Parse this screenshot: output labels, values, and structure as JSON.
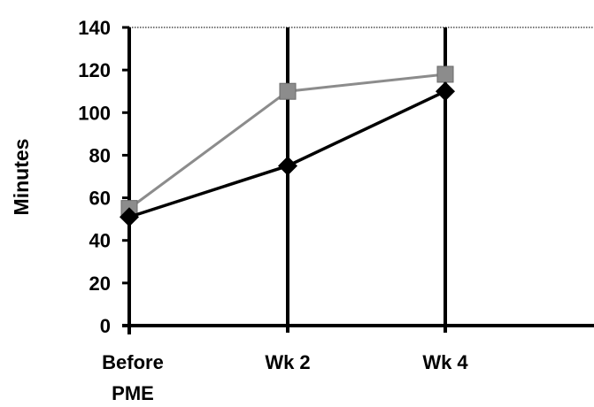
{
  "chart_data": {
    "type": "line",
    "title": "",
    "xlabel": "",
    "ylabel": "Minutes",
    "categories": [
      [
        "Before",
        "PME"
      ],
      [
        "Wk 2"
      ],
      [
        "Wk 4"
      ]
    ],
    "ylim": [
      0,
      140
    ],
    "yticks": [
      0,
      20,
      40,
      60,
      80,
      100,
      120,
      140
    ],
    "grid": "vertical lines at categories, dotted top border",
    "legend": "none",
    "series": [
      {
        "values": [
          55,
          110,
          118
        ],
        "color": "#8c8c8c",
        "marker": "square"
      },
      {
        "values": [
          51,
          75,
          110
        ],
        "color": "#000000",
        "marker": "diamond"
      }
    ]
  }
}
